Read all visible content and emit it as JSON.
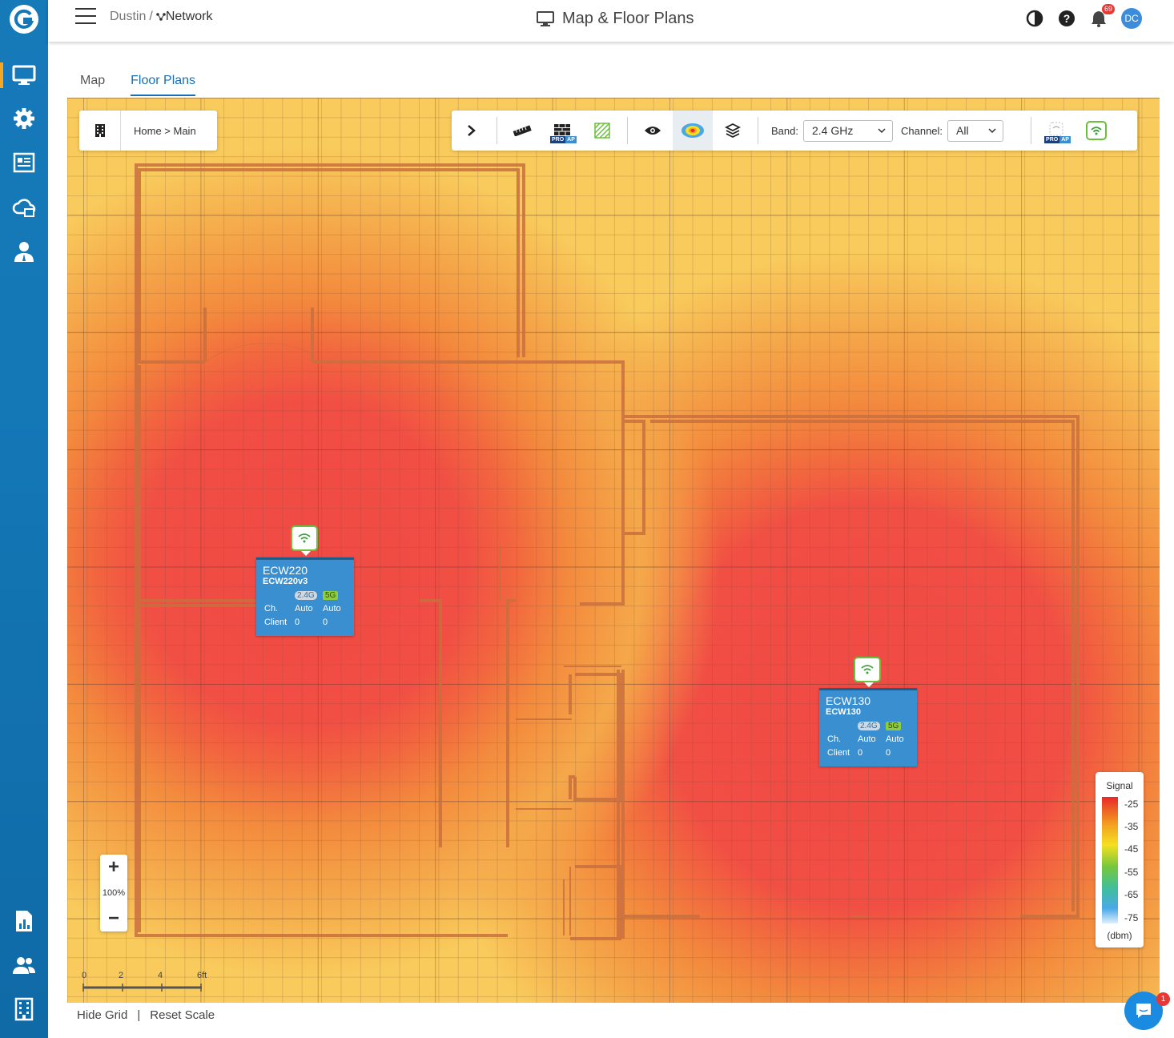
{
  "header": {
    "breadcrumb_org": "Dustin",
    "breadcrumb_sep": "/",
    "breadcrumb_network": "Network",
    "title": "Map & Floor Plans",
    "notification_count": "69",
    "avatar_initials": "DC"
  },
  "sidebar": {
    "items": [
      {
        "icon": "monitor-icon",
        "active": true
      },
      {
        "icon": "gear-icon",
        "active": false
      },
      {
        "icon": "report-icon",
        "active": false
      },
      {
        "icon": "cloud-icon",
        "active": false
      },
      {
        "icon": "user-admin-icon",
        "active": false
      },
      {
        "icon": "chart-doc-icon",
        "active": false
      },
      {
        "icon": "users-icon",
        "active": false
      },
      {
        "icon": "building-icon",
        "active": false
      }
    ]
  },
  "tabs": [
    {
      "label": "Map",
      "active": false
    },
    {
      "label": "Floor Plans",
      "active": true
    }
  ],
  "floor_breadcrumb": "Home > Main",
  "toolbar": {
    "band_label": "Band:",
    "band_value": "2.4 GHz",
    "channel_label": "Channel:",
    "channel_value": "All",
    "pro_text": "PRO",
    "ap_text": "AP"
  },
  "access_points": [
    {
      "name": "ECW220",
      "model": "ECW220v3",
      "band1": "2.4G",
      "band2": "5G",
      "ch_label": "Ch.",
      "ch1": "Auto",
      "ch2": "Auto",
      "client_label": "Client",
      "client1": "0",
      "client2": "0"
    },
    {
      "name": "ECW130",
      "model": "ECW130",
      "band1": "2.4G",
      "band2": "5G",
      "ch_label": "Ch.",
      "ch1": "Auto",
      "ch2": "Auto",
      "client_label": "Client",
      "client1": "0",
      "client2": "0"
    }
  ],
  "zoom": {
    "plus": "+",
    "level": "100%",
    "minus": "−"
  },
  "scale": {
    "labels": [
      "0",
      "2",
      "4",
      "6ft"
    ]
  },
  "legend": {
    "title": "Signal",
    "ticks": [
      "-25",
      "-35",
      "-45",
      "-55",
      "-65",
      "-75"
    ],
    "unit": "(dbm)"
  },
  "footer": {
    "hide_grid": "Hide Grid",
    "sep": "|",
    "reset_scale": "Reset Scale"
  },
  "chat_badge": "1",
  "colors": {
    "primary": "#1a6fb3",
    "sidebar": "#1477b6",
    "ap_card": "#3a8fd0",
    "ap_border": "#6abf3c"
  }
}
